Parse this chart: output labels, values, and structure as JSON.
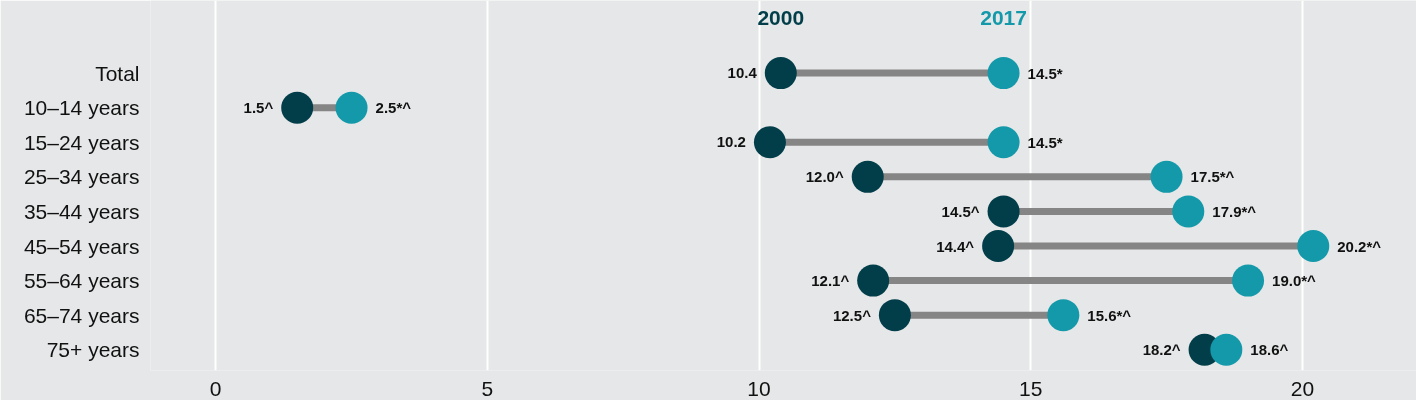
{
  "chart_data": {
    "type": "scatter",
    "orientation": "horizontal",
    "legend": "top",
    "marker": "circle",
    "grid": "x",
    "categories": [
      "Total",
      "10–14 years",
      "15–24 years",
      "25–34 years",
      "35–44 years",
      "45–54 years",
      "55–64 years",
      "65–74 years",
      "75+ years"
    ],
    "series": [
      {
        "name": "2000",
        "color": "#023e4a",
        "values": [
          10.4,
          1.5,
          10.2,
          12.0,
          14.5,
          14.4,
          12.1,
          12.5,
          18.2
        ],
        "value_labels": [
          "10.4",
          "1.5^",
          "10.2",
          "12.0^",
          "14.5^",
          "14.4^",
          "12.1^",
          "12.5^",
          "18.2^"
        ]
      },
      {
        "name": "2017",
        "color": "#1399a9",
        "values": [
          14.5,
          2.5,
          14.5,
          17.5,
          17.9,
          20.2,
          19.0,
          15.6,
          18.6
        ],
        "value_labels": [
          "14.5*",
          "2.5*^",
          "14.5*",
          "17.5*^",
          "17.9*^",
          "20.2*^",
          "19.0*^",
          "15.6*^",
          "18.6^"
        ]
      }
    ],
    "xlim": [
      -1.2,
      22.1
    ],
    "xticks": [
      0,
      5,
      10,
      15,
      20
    ]
  }
}
